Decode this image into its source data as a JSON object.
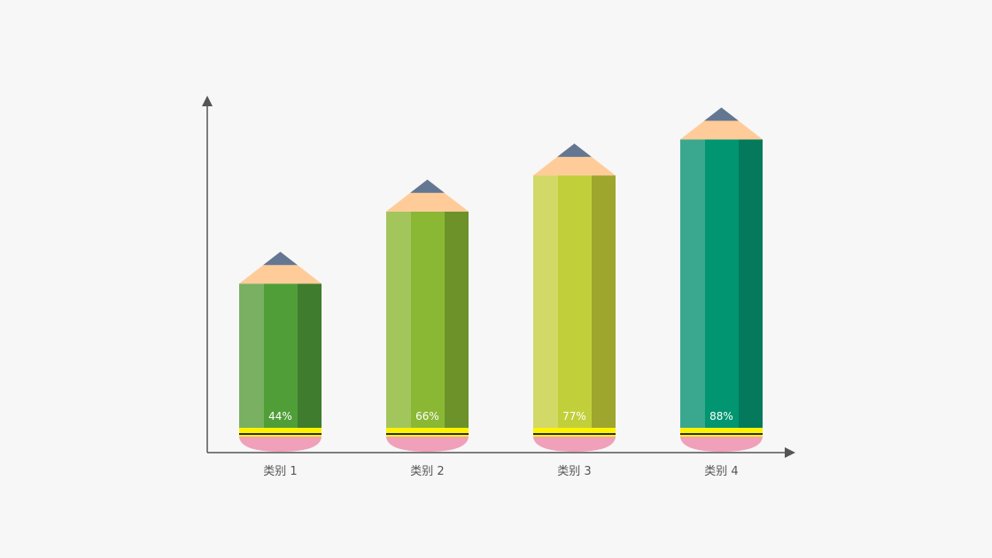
{
  "chart_data": {
    "type": "bar",
    "style": "pencil",
    "categories": [
      "类别 1",
      "类别 2",
      "类别 3",
      "类别 4"
    ],
    "values": [
      44,
      66,
      77,
      88
    ],
    "value_labels": [
      "44%",
      "66%",
      "77%",
      "88%"
    ],
    "ylim": [
      0,
      100
    ],
    "grid": false,
    "legend": "none",
    "title": "",
    "xlabel": "",
    "ylabel": "",
    "colors": [
      {
        "light": "#79b062",
        "mid": "#509e38",
        "dark": "#3f7c2e"
      },
      {
        "light": "#a2c55c",
        "mid": "#8ab835",
        "dark": "#6c9229"
      },
      {
        "light": "#d2d966",
        "mid": "#c1d03a",
        "dark": "#9ea62e"
      },
      {
        "light": "#3aa88f",
        "mid": "#019571",
        "dark": "#04795b"
      }
    ],
    "accent_colors": {
      "wood": "#ffcc99",
      "graphite": "#637792",
      "ferrule_yellow": "#fff200",
      "ferrule_band": "#2b2b2b",
      "eraser": "#f0a0b8",
      "axis": "#555555"
    }
  }
}
